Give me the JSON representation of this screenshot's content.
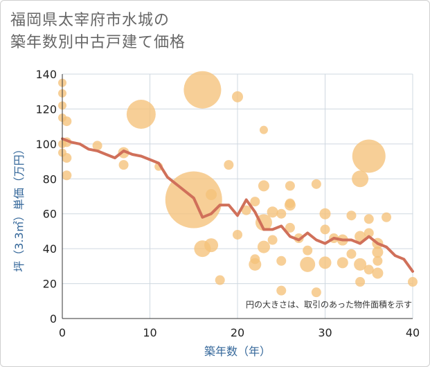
{
  "chart_data": {
    "type": "scatter",
    "title_line1": "福岡県太宰府市水城の",
    "title_line2": "築年数別中古戸建て価格",
    "xlabel": "築年数（年）",
    "ylabel": "坪（3.3㎡）単価（万円）",
    "note": "円の大きさは、取引のあった物件面積を示す",
    "xlim": [
      0,
      40
    ],
    "ylim": [
      0,
      140
    ],
    "xticks": [
      0,
      10,
      20,
      30,
      40
    ],
    "yticks": [
      0,
      20,
      40,
      60,
      80,
      100,
      120,
      140
    ],
    "grid": true,
    "colors": {
      "bubble": "#f5c27a",
      "line": "#d0705a",
      "grid": "#cfd8e0",
      "axis": "#333333"
    },
    "points": [
      {
        "x": 0,
        "y": 135,
        "r": 6
      },
      {
        "x": 0,
        "y": 129,
        "r": 6
      },
      {
        "x": 0,
        "y": 122,
        "r": 6
      },
      {
        "x": 0,
        "y": 115,
        "r": 6
      },
      {
        "x": 0,
        "y": 100,
        "r": 6
      },
      {
        "x": 0,
        "y": 95,
        "r": 6
      },
      {
        "x": 0.5,
        "y": 113,
        "r": 7
      },
      {
        "x": 0.5,
        "y": 101,
        "r": 7
      },
      {
        "x": 0.5,
        "y": 92,
        "r": 7
      },
      {
        "x": 0.5,
        "y": 82,
        "r": 7
      },
      {
        "x": 4,
        "y": 99,
        "r": 7
      },
      {
        "x": 7,
        "y": 95,
        "r": 8
      },
      {
        "x": 7,
        "y": 88,
        "r": 7
      },
      {
        "x": 9,
        "y": 117,
        "r": 21
      },
      {
        "x": 11,
        "y": 87,
        "r": 6
      },
      {
        "x": 15,
        "y": 68,
        "r": 41
      },
      {
        "x": 16,
        "y": 131,
        "r": 27
      },
      {
        "x": 16,
        "y": 40,
        "r": 12
      },
      {
        "x": 17,
        "y": 71,
        "r": 8
      },
      {
        "x": 17,
        "y": 42,
        "r": 10
      },
      {
        "x": 18,
        "y": 22,
        "r": 7
      },
      {
        "x": 19,
        "y": 88,
        "r": 7
      },
      {
        "x": 20,
        "y": 127,
        "r": 8
      },
      {
        "x": 20,
        "y": 48,
        "r": 7
      },
      {
        "x": 21,
        "y": 62,
        "r": 7
      },
      {
        "x": 22,
        "y": 67,
        "r": 7
      },
      {
        "x": 22,
        "y": 34,
        "r": 7
      },
      {
        "x": 22,
        "y": 31,
        "r": 9
      },
      {
        "x": 23,
        "y": 108,
        "r": 6
      },
      {
        "x": 23,
        "y": 76,
        "r": 8
      },
      {
        "x": 23,
        "y": 55,
        "r": 12
      },
      {
        "x": 23,
        "y": 41,
        "r": 9
      },
      {
        "x": 24,
        "y": 61,
        "r": 8
      },
      {
        "x": 24,
        "y": 45,
        "r": 7
      },
      {
        "x": 25,
        "y": 60,
        "r": 7
      },
      {
        "x": 25,
        "y": 33,
        "r": 7
      },
      {
        "x": 25,
        "y": 16,
        "r": 7
      },
      {
        "x": 26,
        "y": 76,
        "r": 7
      },
      {
        "x": 26,
        "y": 66,
        "r": 7
      },
      {
        "x": 26,
        "y": 65,
        "r": 8
      },
      {
        "x": 26,
        "y": 52,
        "r": 7
      },
      {
        "x": 27,
        "y": 46,
        "r": 7
      },
      {
        "x": 28,
        "y": 39,
        "r": 7
      },
      {
        "x": 28,
        "y": 31,
        "r": 11
      },
      {
        "x": 29,
        "y": 77,
        "r": 7
      },
      {
        "x": 29,
        "y": 15,
        "r": 7
      },
      {
        "x": 30,
        "y": 60,
        "r": 8
      },
      {
        "x": 30,
        "y": 51,
        "r": 7
      },
      {
        "x": 30,
        "y": 32,
        "r": 9
      },
      {
        "x": 31,
        "y": 46,
        "r": 7
      },
      {
        "x": 32,
        "y": 45,
        "r": 8
      },
      {
        "x": 32,
        "y": 32,
        "r": 8
      },
      {
        "x": 33,
        "y": 59,
        "r": 7
      },
      {
        "x": 33,
        "y": 37,
        "r": 7
      },
      {
        "x": 34,
        "y": 80,
        "r": 12
      },
      {
        "x": 34,
        "y": 47,
        "r": 8
      },
      {
        "x": 34,
        "y": 31,
        "r": 9
      },
      {
        "x": 34,
        "y": 21,
        "r": 7
      },
      {
        "x": 35,
        "y": 93,
        "r": 24
      },
      {
        "x": 35,
        "y": 57,
        "r": 7
      },
      {
        "x": 35,
        "y": 49,
        "r": 7
      },
      {
        "x": 35,
        "y": 28,
        "r": 7
      },
      {
        "x": 36,
        "y": 43,
        "r": 8
      },
      {
        "x": 36,
        "y": 38,
        "r": 8
      },
      {
        "x": 36,
        "y": 33,
        "r": 7
      },
      {
        "x": 36,
        "y": 26,
        "r": 8
      },
      {
        "x": 37,
        "y": 58,
        "r": 7
      },
      {
        "x": 40,
        "y": 21,
        "r": 7
      }
    ],
    "trend": {
      "x": [
        0,
        1,
        2,
        3,
        4,
        5,
        6,
        7,
        8,
        9,
        10,
        11,
        12,
        13,
        14,
        15,
        16,
        17,
        18,
        19,
        20,
        21,
        22,
        23,
        24,
        25,
        26,
        27,
        28,
        29,
        30,
        31,
        32,
        33,
        34,
        35,
        36,
        37,
        38,
        39,
        40
      ],
      "y": [
        103,
        101,
        100,
        97,
        96,
        94,
        92,
        96,
        94,
        93,
        91,
        89,
        81,
        77,
        73,
        69,
        58,
        60,
        65,
        65,
        59,
        68,
        61,
        51,
        51,
        53,
        47,
        45,
        49,
        45,
        43,
        46,
        45,
        45,
        43,
        47,
        43,
        41,
        36,
        34,
        27
      ]
    }
  }
}
